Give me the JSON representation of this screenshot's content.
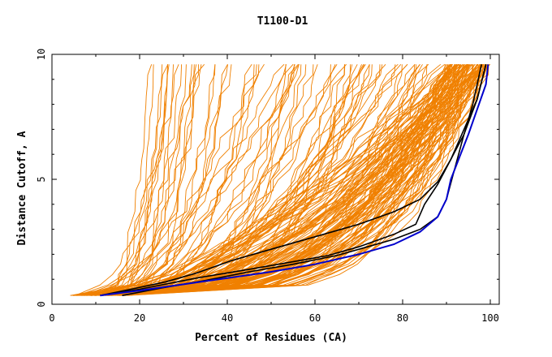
{
  "chart_data": {
    "type": "line",
    "title": "T1100-D1",
    "xlabel": "Percent of Residues (CA)",
    "ylabel": "Distance Cutoff, A",
    "xlim": [
      0,
      100
    ],
    "ylim": [
      0,
      10
    ],
    "xticks": [
      "0",
      "20",
      "40",
      "60",
      "80",
      "100"
    ],
    "yticks": [
      "0",
      "5",
      "10"
    ],
    "grid": false,
    "legend": "none",
    "colors": {
      "background_models": "#f08000",
      "highlight_black": "#000000",
      "highlight_blue": "#0000cc"
    },
    "background_series_count": 180,
    "series": [
      {
        "color": "#000000",
        "x": [
          11,
          20,
          33,
          45,
          55,
          63,
          70,
          78,
          83,
          85,
          88,
          91,
          94,
          97,
          99
        ],
        "y": [
          0.35,
          0.6,
          1.05,
          1.4,
          1.7,
          1.95,
          2.3,
          2.8,
          3.2,
          4.0,
          4.8,
          5.8,
          7.0,
          8.2,
          9.6
        ]
      },
      {
        "color": "#000000",
        "x": [
          16,
          25,
          35,
          45,
          55,
          65,
          72,
          78,
          84,
          88,
          90,
          92,
          94,
          96,
          98
        ],
        "y": [
          0.35,
          0.65,
          0.95,
          1.3,
          1.6,
          1.95,
          2.3,
          2.6,
          3.0,
          3.5,
          4.2,
          5.5,
          6.8,
          8.0,
          9.6
        ]
      },
      {
        "color": "#000000",
        "x": [
          11,
          18,
          26,
          33,
          41,
          50,
          60,
          70,
          78,
          84,
          88,
          91,
          94,
          97,
          99
        ],
        "y": [
          0.35,
          0.6,
          0.9,
          1.25,
          1.75,
          2.2,
          2.7,
          3.2,
          3.7,
          4.2,
          4.9,
          5.8,
          6.8,
          8.2,
          9.6
        ]
      },
      {
        "color": "#0000cc",
        "x": [
          11,
          20,
          30,
          40,
          50,
          60,
          70,
          78,
          84,
          88,
          90,
          91,
          93,
          95,
          97,
          99,
          99.5
        ],
        "y": [
          0.35,
          0.55,
          0.8,
          1.05,
          1.3,
          1.6,
          2.0,
          2.4,
          2.9,
          3.5,
          4.2,
          5.0,
          5.9,
          6.8,
          7.8,
          8.8,
          9.6
        ]
      }
    ]
  }
}
